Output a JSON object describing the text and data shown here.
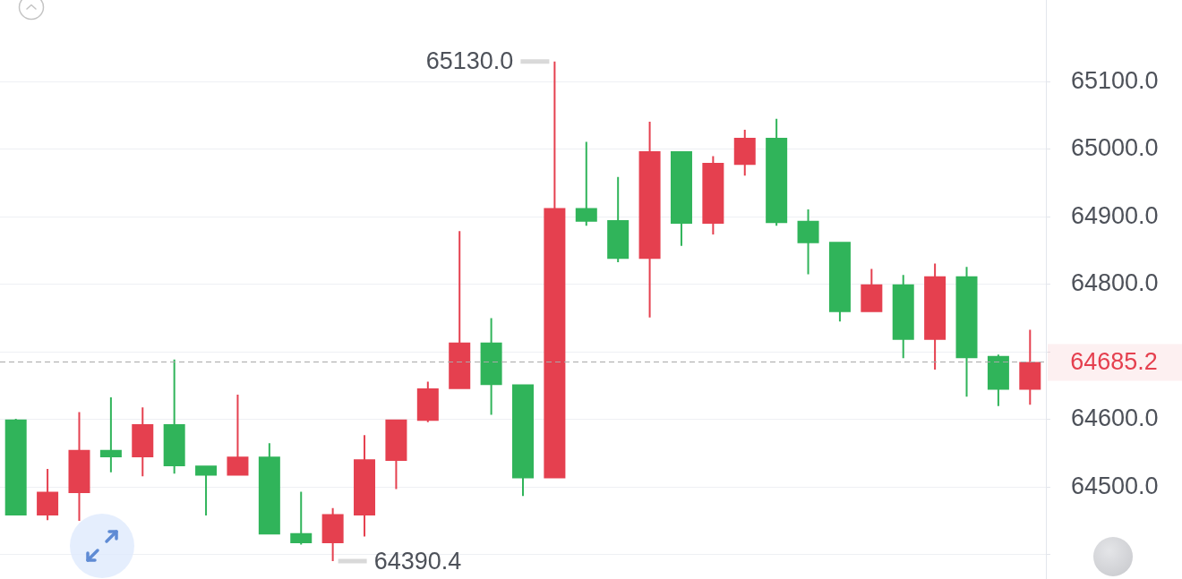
{
  "chart_data": {
    "type": "candlestick",
    "categories": [
      null,
      null,
      null,
      null,
      null,
      null,
      null,
      null,
      null,
      null,
      null,
      null,
      null,
      null,
      null,
      null,
      null,
      null,
      null,
      null,
      null,
      null,
      null,
      null,
      null,
      null,
      null,
      null,
      null,
      null,
      null,
      null,
      null
    ],
    "ohlc": [
      [
        64600,
        64601,
        64458,
        64458
      ],
      [
        64458,
        64527,
        64451,
        64493
      ],
      [
        64491,
        64611,
        64450,
        64555
      ],
      [
        64555,
        64633,
        64522,
        64544
      ],
      [
        64544,
        64618,
        64516,
        64593
      ],
      [
        64593,
        64689,
        64520,
        64531
      ],
      [
        64532,
        64532,
        64458,
        64517
      ],
      [
        64517,
        64637,
        64517,
        64545
      ],
      [
        64545,
        64565,
        64430,
        64430
      ],
      [
        64432,
        64493,
        64415,
        64417
      ],
      [
        64417,
        64469,
        64390.4,
        64460
      ],
      [
        64458,
        64577,
        64427,
        64541
      ],
      [
        64539,
        64600,
        64497,
        64600
      ],
      [
        64598,
        64656,
        64596,
        64646
      ],
      [
        64645,
        64879,
        64645,
        64714
      ],
      [
        64714,
        64750,
        64607,
        64651
      ],
      [
        64652,
        64652,
        64487,
        64513
      ],
      [
        64513,
        65130,
        64513,
        64913
      ],
      [
        64913,
        65011,
        64887,
        64893
      ],
      [
        64895,
        64959,
        64833,
        64838
      ],
      [
        64838,
        65041,
        64751,
        64997
      ],
      [
        64997,
        64997,
        64857,
        64890
      ],
      [
        64890,
        64990,
        64874,
        64980
      ],
      [
        64977,
        65029,
        64961,
        65017
      ],
      [
        65017,
        65045,
        64887,
        64891
      ],
      [
        64894,
        64911,
        64815,
        64861
      ],
      [
        64863,
        64863,
        64745,
        64759
      ],
      [
        64759,
        64823,
        64759,
        64800
      ],
      [
        64800,
        64814,
        64691,
        64718
      ],
      [
        64718,
        64831,
        64674,
        64812
      ],
      [
        64812,
        64826,
        64634,
        64691
      ],
      [
        64694,
        64696,
        64620,
        64644
      ],
      [
        64644,
        64733,
        64622,
        64685.2
      ]
    ],
    "colors": [
      "#30b45a",
      "#e5404f",
      "#e5404f",
      "#30b45a",
      "#e5404f",
      "#30b45a",
      "#30b45a",
      "#e5404f",
      "#30b45a",
      "#30b45a",
      "#e5404f",
      "#e5404f",
      "#e5404f",
      "#e5404f",
      "#e5404f",
      "#30b45a",
      "#30b45a",
      "#e5404f",
      "#30b45a",
      "#30b45a",
      "#e5404f",
      "#30b45a",
      "#e5404f",
      "#e5404f",
      "#30b45a",
      "#30b45a",
      "#30b45a",
      "#e5404f",
      "#30b45a",
      "#e5404f",
      "#30b45a",
      "#30b45a",
      "#e5404f"
    ],
    "ylim": [
      64364,
      65221
    ],
    "yticks": [
      {
        "value": 64400,
        "label": null
      },
      {
        "value": 64500,
        "label": "64500.0"
      },
      {
        "value": 64600,
        "label": "64600.0"
      },
      {
        "value": 64700,
        "label": null
      },
      {
        "value": 64800,
        "label": "64800.0"
      },
      {
        "value": 64900,
        "label": "64900.0"
      },
      {
        "value": 65000,
        "label": "65000.0"
      },
      {
        "value": 65100,
        "label": "65100.0"
      }
    ],
    "grid": "y",
    "tick_labels": "y",
    "ref_lines": [
      {
        "axis": "y",
        "value": 64685.2,
        "label": "64685.2",
        "color": "#a9a9a9",
        "line_style": "dashed"
      }
    ],
    "annotations": [
      "65130.0",
      "64390.4"
    ]
  }
}
